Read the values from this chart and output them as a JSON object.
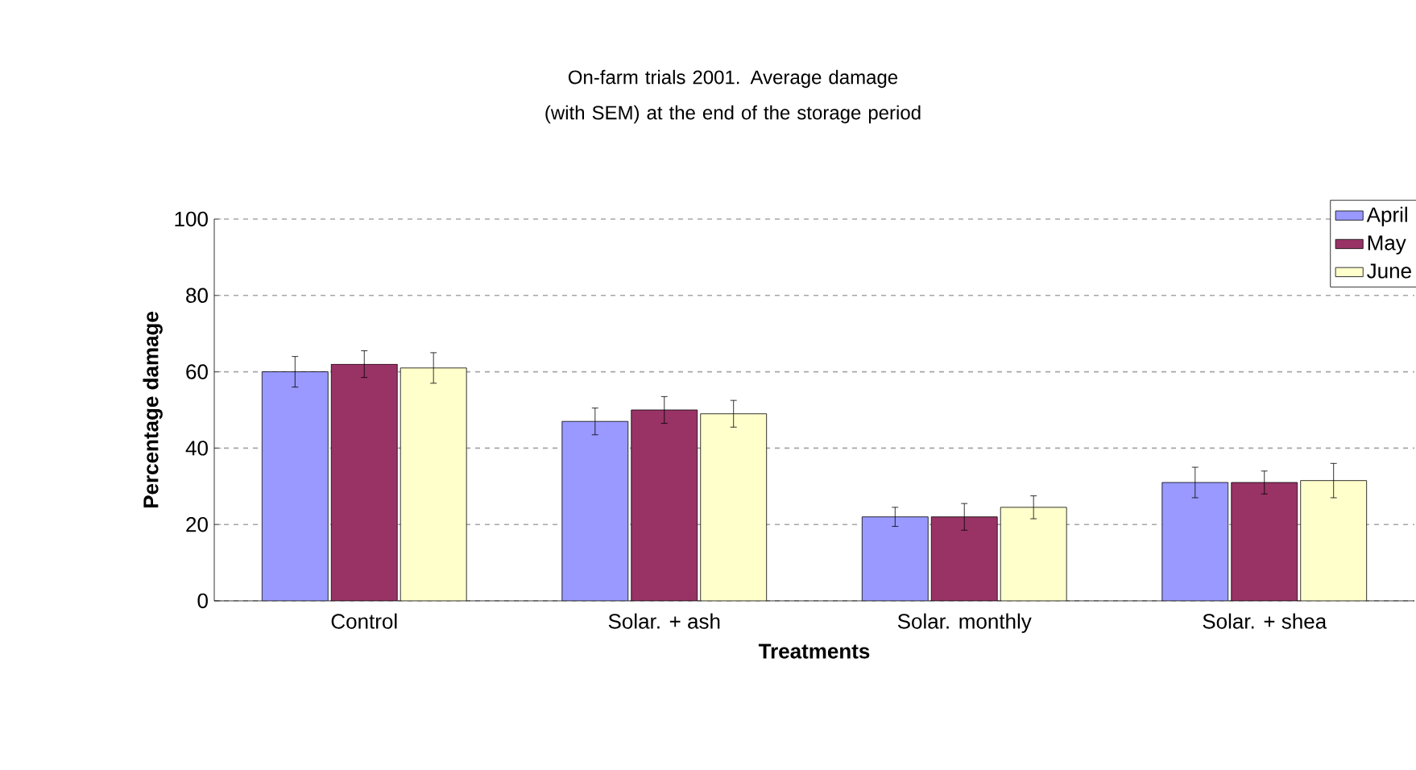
{
  "chart_data": {
    "type": "bar",
    "title": "On-farm trials 2001. Average damage (with SEM) at the end of the storage period",
    "xlabel": "Treatments",
    "ylabel": "Percentage damage",
    "categories": [
      "Control",
      "Solar. + ash",
      "Solar. monthly",
      "Solar. + shea"
    ],
    "series": [
      {
        "name": "April",
        "color": "#9999ff",
        "values": [
          60,
          47,
          22,
          31
        ],
        "errors": [
          4,
          3.5,
          2.5,
          4
        ]
      },
      {
        "name": "May",
        "color": "#993366",
        "values": [
          62,
          50,
          22,
          31
        ],
        "errors": [
          3.5,
          3.5,
          3.5,
          3
        ]
      },
      {
        "name": "June",
        "color": "#ffffcc",
        "values": [
          61,
          49,
          24.5,
          31.5
        ],
        "errors": [
          4,
          3.5,
          3,
          4.5
        ]
      }
    ],
    "ylim": [
      0,
      100
    ],
    "yticks": [
      0,
      20,
      40,
      60,
      80,
      100
    ],
    "grid": "y",
    "legend": "top right"
  }
}
